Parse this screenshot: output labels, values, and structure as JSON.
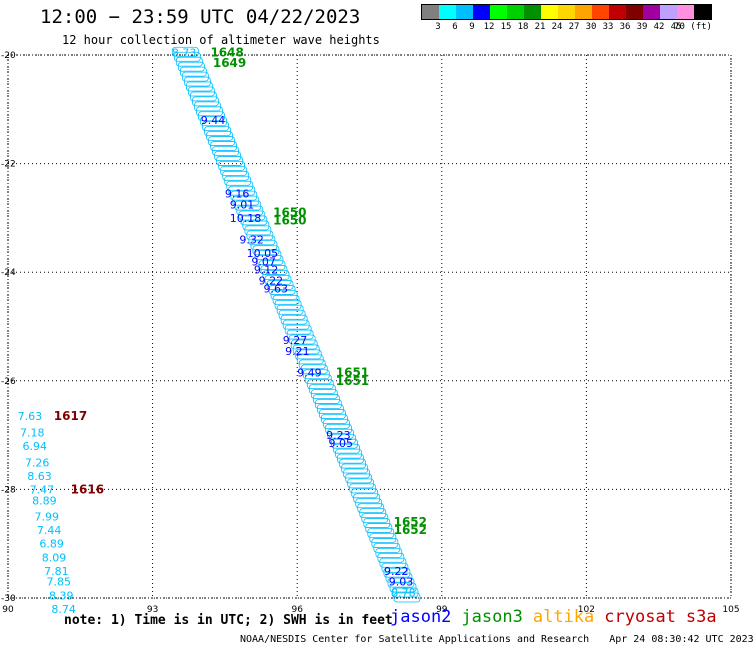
{
  "header": {
    "title": "12:00 − 23:59 UTC 04/22/2023",
    "subtitle": "12 hour collection of altimeter wave heights"
  },
  "legend": {
    "swatches": [
      "#808080",
      "#00ffff",
      "#00bfff",
      "#0000ff",
      "#00ff00",
      "#00d000",
      "#009000",
      "#ffff00",
      "#ffd700",
      "#ffa500",
      "#ff4500",
      "#c00000",
      "#800000",
      "#a000a0",
      "#c0a0ff",
      "#ff90e0",
      "#000000"
    ],
    "labels": [
      "3",
      "6",
      "9",
      "12",
      "15",
      "18",
      "21",
      "24",
      "27",
      "30",
      "33",
      "36",
      "39",
      "42",
      "45",
      "70 (ft)"
    ]
  },
  "map": {
    "lon_ticks": [
      "90",
      "93",
      "96",
      "99",
      "102",
      "105"
    ],
    "lat_ticks": [
      "-20",
      "-22",
      "-24",
      "-26",
      "-28",
      "-30"
    ],
    "orbit_labels": [
      {
        "text": "1648",
        "lon": 94.2,
        "lat": -19.95,
        "color": "#009000"
      },
      {
        "text": "1649",
        "lon": 94.25,
        "lat": -20.15,
        "color": "#009000"
      },
      {
        "text": "1650",
        "lon": 95.5,
        "lat": -22.9,
        "color": "#009000"
      },
      {
        "text": "1650",
        "lon": 95.5,
        "lat": -23.05,
        "color": "#009000"
      },
      {
        "text": "1651",
        "lon": 96.8,
        "lat": -25.85,
        "color": "#009000"
      },
      {
        "text": "1651",
        "lon": 96.8,
        "lat": -26.0,
        "color": "#009000"
      },
      {
        "text": "1652",
        "lon": 98.0,
        "lat": -28.6,
        "color": "#009000"
      },
      {
        "text": "1652",
        "lon": 98.0,
        "lat": -28.75,
        "color": "#009000"
      },
      {
        "text": "1617",
        "lon": 90.95,
        "lat": -26.65,
        "color": "#800000"
      },
      {
        "text": "1616",
        "lon": 91.3,
        "lat": -28.0,
        "color": "#800000"
      }
    ],
    "track_values": [
      {
        "text": "8.73",
        "lon": 93.4,
        "lat": -19.95,
        "color": "#00bfff"
      },
      {
        "text": "9.44",
        "lon": 94.0,
        "lat": -21.2,
        "color": "#0000ff"
      },
      {
        "text": "9.16",
        "lon": 94.5,
        "lat": -22.55,
        "color": "#0000ff"
      },
      {
        "text": "9.01",
        "lon": 94.6,
        "lat": -22.75,
        "color": "#0000ff"
      },
      {
        "text": "10.18",
        "lon": 94.6,
        "lat": -23.0,
        "color": "#0000ff"
      },
      {
        "text": "9.32",
        "lon": 94.8,
        "lat": -23.4,
        "color": "#0000ff"
      },
      {
        "text": "10.05",
        "lon": 94.95,
        "lat": -23.65,
        "color": "#0000ff"
      },
      {
        "text": "9.07",
        "lon": 95.05,
        "lat": -23.8,
        "color": "#0000ff"
      },
      {
        "text": "9.12",
        "lon": 95.1,
        "lat": -23.95,
        "color": "#0000ff"
      },
      {
        "text": "9.22",
        "lon": 95.2,
        "lat": -24.15,
        "color": "#0000ff"
      },
      {
        "text": "9.63",
        "lon": 95.3,
        "lat": -24.3,
        "color": "#0000ff"
      },
      {
        "text": "9.27",
        "lon": 95.7,
        "lat": -25.25,
        "color": "#0000ff"
      },
      {
        "text": "9.21",
        "lon": 95.75,
        "lat": -25.45,
        "color": "#0000ff"
      },
      {
        "text": "9.49",
        "lon": 96.0,
        "lat": -25.85,
        "color": "#0000ff"
      },
      {
        "text": "9.23",
        "lon": 96.6,
        "lat": -27.0,
        "color": "#0000ff"
      },
      {
        "text": "9.05",
        "lon": 96.65,
        "lat": -27.15,
        "color": "#0000ff"
      },
      {
        "text": "9.22",
        "lon": 97.8,
        "lat": -29.5,
        "color": "#0000ff"
      },
      {
        "text": "9.03",
        "lon": 97.9,
        "lat": -29.7,
        "color": "#0000ff"
      },
      {
        "text": "8.78",
        "lon": 97.95,
        "lat": -29.9,
        "color": "#00bfff"
      },
      {
        "text": "7.63",
        "lon": 90.2,
        "lat": -26.65,
        "color": "#00bfff"
      },
      {
        "text": "7.18",
        "lon": 90.25,
        "lat": -26.95,
        "color": "#00bfff"
      },
      {
        "text": "6.94",
        "lon": 90.3,
        "lat": -27.2,
        "color": "#00bfff"
      },
      {
        "text": "7.26",
        "lon": 90.35,
        "lat": -27.5,
        "color": "#00bfff"
      },
      {
        "text": "8.63",
        "lon": 90.4,
        "lat": -27.75,
        "color": "#00bfff"
      },
      {
        "text": "7.47",
        "lon": 90.45,
        "lat": -28.0,
        "color": "#00bfff"
      },
      {
        "text": "8.89",
        "lon": 90.5,
        "lat": -28.2,
        "color": "#00bfff"
      },
      {
        "text": "7.99",
        "lon": 90.55,
        "lat": -28.5,
        "color": "#00bfff"
      },
      {
        "text": "7.44",
        "lon": 90.6,
        "lat": -28.75,
        "color": "#00bfff"
      },
      {
        "text": "6.89",
        "lon": 90.65,
        "lat": -29.0,
        "color": "#00bfff"
      },
      {
        "text": "8.09",
        "lon": 90.7,
        "lat": -29.25,
        "color": "#00bfff"
      },
      {
        "text": "7.81",
        "lon": 90.75,
        "lat": -29.5,
        "color": "#00bfff"
      },
      {
        "text": "7.85",
        "lon": 90.8,
        "lat": -29.7,
        "color": "#00bfff"
      },
      {
        "text": "8.39",
        "lon": 90.85,
        "lat": -29.95,
        "color": "#00bfff"
      },
      {
        "text": "8.74",
        "lon": 90.9,
        "lat": -30.2,
        "color": "#00bfff"
      }
    ],
    "track_fill_color": "#00bfff"
  },
  "footer": {
    "note": "note: 1) Time is in UTC; 2) SWH is in feet",
    "satellites": [
      {
        "name": "jason2",
        "color": "#0000ff"
      },
      {
        "name": "jason3",
        "color": "#009000"
      },
      {
        "name": "altika",
        "color": "#ffa500"
      },
      {
        "name": "cryosat",
        "color": "#c00000"
      },
      {
        "name": "s3a",
        "color": "#c00000"
      }
    ],
    "credit": "NOAA/NESDIS Center for Satellite Applications and Research",
    "timestamp": "Apr 24 08:30:42 UTC 2023"
  }
}
